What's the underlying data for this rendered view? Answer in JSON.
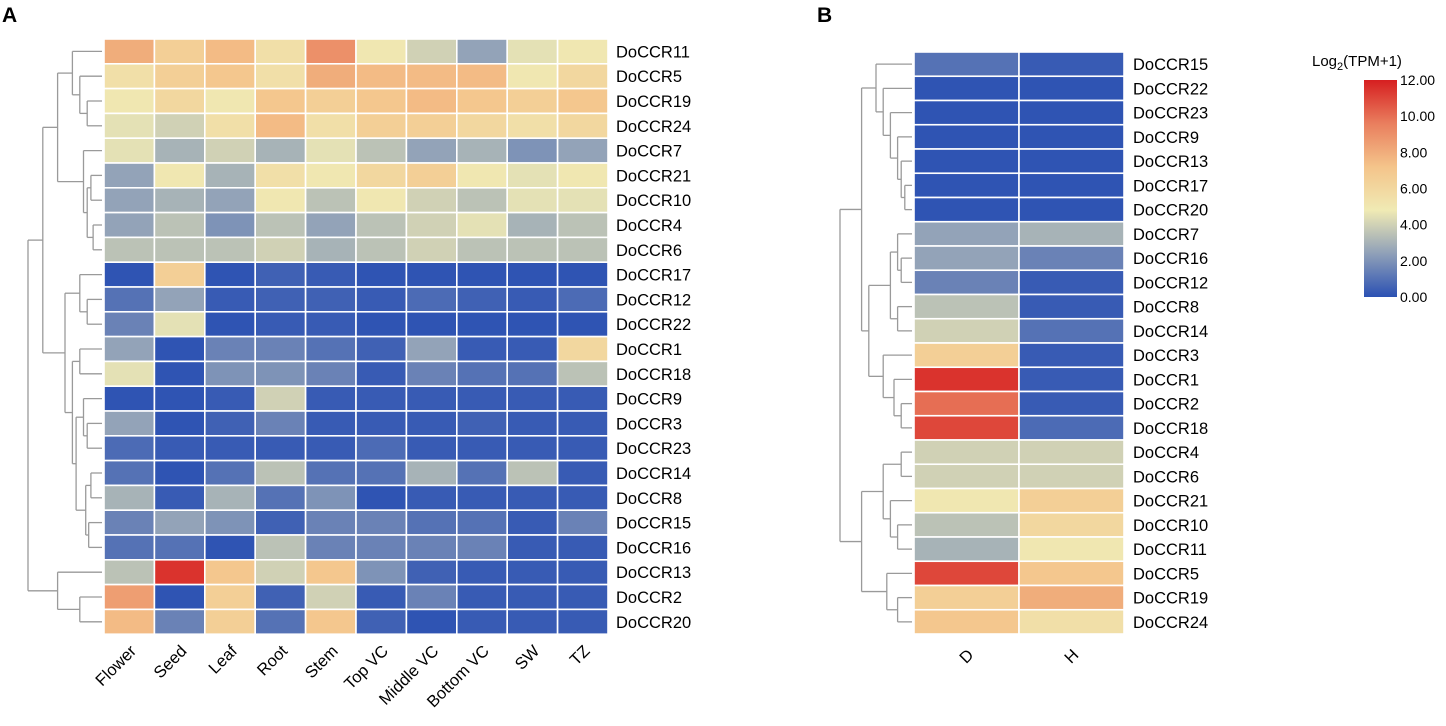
{
  "chart_data": [
    {
      "type": "heatmap",
      "panel": "A",
      "columns": [
        "Flower",
        "Seed",
        "Leaf",
        "Root",
        "Stem",
        "Top VC",
        "Middle VC",
        "Bottom VC",
        "SW",
        "TZ"
      ],
      "rows": [
        "DoCCR11",
        "DoCCR5",
        "DoCCR19",
        "DoCCR24",
        "DoCCR7",
        "DoCCR21",
        "DoCCR10",
        "DoCCR4",
        "DoCCR6",
        "DoCCR17",
        "DoCCR12",
        "DoCCR22",
        "DoCCR1",
        "DoCCR18",
        "DoCCR9",
        "DoCCR3",
        "DoCCR23",
        "DoCCR14",
        "DoCCR8",
        "DoCCR15",
        "DoCCR16",
        "DoCCR13",
        "DoCCR2",
        "DoCCR20"
      ],
      "values": [
        [
          8.0,
          6.5,
          7.5,
          5.5,
          9.0,
          5.0,
          4.0,
          2.5,
          4.5,
          5.0
        ],
        [
          5.5,
          6.5,
          7.0,
          5.5,
          8.0,
          7.5,
          7.5,
          7.5,
          5.0,
          6.0
        ],
        [
          5.0,
          6.0,
          5.0,
          7.0,
          6.5,
          7.0,
          7.5,
          7.0,
          6.5,
          7.0
        ],
        [
          4.5,
          4.0,
          5.5,
          7.5,
          5.5,
          6.5,
          6.5,
          6.0,
          5.5,
          6.0
        ],
        [
          4.5,
          3.0,
          4.0,
          3.0,
          4.5,
          3.5,
          2.5,
          3.0,
          2.0,
          2.5
        ],
        [
          2.5,
          5.0,
          3.0,
          5.5,
          5.0,
          6.0,
          6.5,
          5.0,
          4.5,
          5.0
        ],
        [
          2.5,
          3.0,
          2.5,
          5.0,
          3.5,
          5.0,
          4.0,
          3.5,
          4.5,
          4.5
        ],
        [
          2.5,
          3.5,
          2.0,
          3.5,
          2.5,
          3.5,
          4.0,
          4.5,
          3.0,
          3.5
        ],
        [
          3.5,
          3.5,
          3.5,
          4.0,
          3.0,
          3.5,
          4.0,
          3.5,
          3.5,
          3.5
        ],
        [
          0.1,
          6.5,
          0.1,
          0.5,
          0.3,
          0.1,
          0.1,
          0.1,
          0.1,
          0.1
        ],
        [
          1.0,
          2.5,
          0.3,
          0.5,
          0.5,
          0.3,
          0.8,
          0.5,
          0.3,
          0.8
        ],
        [
          1.5,
          4.5,
          0.1,
          0.3,
          0.3,
          0.1,
          0.1,
          0.1,
          0.1,
          0.1
        ],
        [
          2.5,
          0.1,
          1.5,
          1.5,
          1.0,
          0.5,
          2.5,
          0.3,
          0.3,
          6.0
        ],
        [
          4.5,
          0.1,
          2.0,
          2.0,
          1.5,
          0.3,
          1.5,
          1.0,
          1.0,
          3.5
        ],
        [
          0.1,
          0.1,
          0.3,
          4.0,
          0.3,
          0.3,
          0.3,
          0.3,
          0.3,
          0.3
        ],
        [
          2.5,
          0.1,
          0.5,
          1.5,
          0.3,
          0.3,
          0.3,
          0.5,
          0.3,
          0.3
        ],
        [
          0.8,
          0.3,
          0.3,
          0.3,
          0.3,
          0.8,
          0.3,
          0.3,
          0.3,
          0.3
        ],
        [
          1.0,
          0.1,
          1.0,
          3.5,
          1.0,
          1.0,
          3.0,
          1.0,
          3.5,
          0.3
        ],
        [
          3.0,
          0.3,
          3.0,
          1.0,
          2.0,
          0.1,
          0.3,
          0.3,
          0.3,
          0.3
        ],
        [
          1.5,
          2.5,
          2.0,
          0.5,
          1.5,
          1.5,
          1.0,
          1.0,
          0.3,
          1.5
        ],
        [
          1.0,
          1.0,
          0.1,
          3.5,
          1.5,
          1.5,
          1.5,
          1.5,
          0.3,
          0.3
        ],
        [
          3.5,
          11.5,
          7.0,
          4.0,
          7.0,
          2.0,
          0.5,
          0.3,
          0.3,
          0.3
        ],
        [
          8.5,
          0.1,
          6.5,
          0.5,
          4.0,
          0.3,
          1.5,
          0.3,
          0.3,
          0.3
        ],
        [
          7.5,
          1.5,
          6.5,
          1.0,
          7.0,
          0.5,
          0.1,
          0.3,
          0.3,
          0.3
        ]
      ]
    },
    {
      "type": "heatmap",
      "panel": "B",
      "columns": [
        "D",
        "H"
      ],
      "rows": [
        "DoCCR15",
        "DoCCR22",
        "DoCCR23",
        "DoCCR9",
        "DoCCR13",
        "DoCCR17",
        "DoCCR20",
        "DoCCR7",
        "DoCCR16",
        "DoCCR12",
        "DoCCR8",
        "DoCCR14",
        "DoCCR3",
        "DoCCR1",
        "DoCCR2",
        "DoCCR18",
        "DoCCR4",
        "DoCCR6",
        "DoCCR21",
        "DoCCR10",
        "DoCCR11",
        "DoCCR5",
        "DoCCR19",
        "DoCCR24"
      ],
      "values": [
        [
          1.0,
          0.3
        ],
        [
          0.1,
          0.1
        ],
        [
          0.1,
          0.1
        ],
        [
          0.1,
          0.1
        ],
        [
          0.1,
          0.1
        ],
        [
          0.1,
          0.1
        ],
        [
          0.1,
          0.1
        ],
        [
          2.5,
          3.0
        ],
        [
          2.5,
          1.5
        ],
        [
          1.5,
          0.3
        ],
        [
          3.5,
          0.3
        ],
        [
          4.0,
          1.0
        ],
        [
          6.5,
          0.3
        ],
        [
          11.5,
          0.3
        ],
        [
          10.0,
          0.3
        ],
        [
          11.0,
          0.8
        ],
        [
          4.0,
          4.0
        ],
        [
          4.0,
          4.0
        ],
        [
          5.0,
          6.5
        ],
        [
          3.5,
          6.0
        ],
        [
          3.0,
          5.0
        ],
        [
          11.0,
          7.0
        ],
        [
          6.5,
          8.0
        ],
        [
          7.0,
          5.5
        ]
      ]
    }
  ],
  "panel_labels": {
    "a": "A",
    "b": "B"
  },
  "legend": {
    "title_prefix": "Log",
    "title_subscript": "2",
    "title_suffix": "(TPM+1)",
    "ticks": [
      "12.00",
      "10.00",
      "8.00",
      "6.00",
      "4.00",
      "2.00",
      "0.00"
    ],
    "min": 0,
    "max": 12,
    "color_stops": [
      "#2b51b3",
      "#8fa0b8",
      "#f0eab4",
      "#f4c48a",
      "#e97e5e",
      "#d61f20"
    ]
  }
}
